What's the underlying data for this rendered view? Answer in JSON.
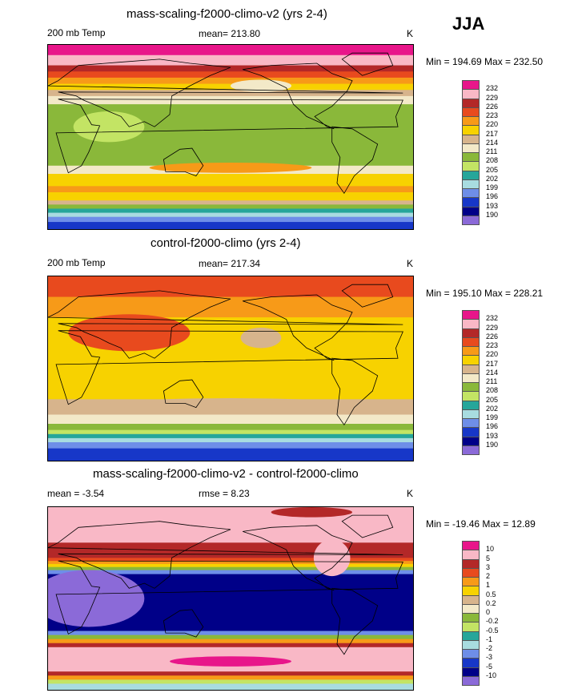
{
  "season_label": "JJA",
  "chart_data": [
    {
      "type": "heatmap",
      "title": "mass-scaling-f2000-climo-v2 (yrs 2-4)",
      "left_label": "200 mb Temp",
      "stat_label": "mean= 213.80",
      "units": "K",
      "minmax": "Min = 194.69 Max = 232.50",
      "levels": [
        "232",
        "229",
        "226",
        "223",
        "220",
        "217",
        "214",
        "211",
        "208",
        "205",
        "202",
        "199",
        "196",
        "193",
        "190"
      ],
      "colors": [
        "#e8168a",
        "#f9b8c6",
        "#b32828",
        "#e84a1e",
        "#f79a18",
        "#f7d200",
        "#d7b48c",
        "#f3e9c8",
        "#8ab83a",
        "#c3e464",
        "#26a69a",
        "#a8dce0",
        "#6e8ee8",
        "#1737c8",
        "#000088",
        "#8b6ad8"
      ],
      "bands": [
        {
          "lat": 90,
          "level": 0
        },
        {
          "lat": 80,
          "level": 1
        },
        {
          "lat": 70,
          "level": 2
        },
        {
          "lat": 64,
          "level": 3
        },
        {
          "lat": 58,
          "level": 4
        },
        {
          "lat": 52,
          "level": 5
        },
        {
          "lat": 46,
          "level": 6
        },
        {
          "lat": 40,
          "level": 7
        },
        {
          "lat": 32,
          "level": 8
        },
        {
          "lat": -28,
          "level": 7
        },
        {
          "lat": -36,
          "level": 5
        },
        {
          "lat": -48,
          "level": 4
        },
        {
          "lat": -54,
          "level": 5
        },
        {
          "lat": -62,
          "level": 6
        },
        {
          "lat": -66,
          "level": 8
        },
        {
          "lat": -70,
          "level": 10
        },
        {
          "lat": -74,
          "level": 11
        },
        {
          "lat": -78,
          "level": 12
        },
        {
          "lat": -83,
          "level": 13
        }
      ],
      "blobs": [
        {
          "lon": 180,
          "lat": -30,
          "rx": 80,
          "ry": 5,
          "level": 4
        },
        {
          "lon": 60,
          "lat": 10,
          "rx": 35,
          "ry": 15,
          "level": 9
        },
        {
          "lon": -150,
          "lat": 50,
          "rx": 30,
          "ry": 6,
          "level": 7
        }
      ]
    },
    {
      "type": "heatmap",
      "title": "control-f2000-climo (yrs 2-4)",
      "left_label": "200 mb Temp",
      "stat_label": "mean= 217.34",
      "units": "K",
      "minmax": "Min = 195.10 Max = 228.21",
      "levels": [
        "232",
        "229",
        "226",
        "223",
        "220",
        "217",
        "214",
        "211",
        "208",
        "205",
        "202",
        "199",
        "196",
        "193",
        "190"
      ],
      "colors": [
        "#e8168a",
        "#f9b8c6",
        "#b32828",
        "#e84a1e",
        "#f79a18",
        "#f7d200",
        "#d7b48c",
        "#f3e9c8",
        "#8ab83a",
        "#c3e464",
        "#26a69a",
        "#a8dce0",
        "#6e8ee8",
        "#1737c8",
        "#000088",
        "#8b6ad8"
      ],
      "bands": [
        {
          "lat": 90,
          "level": 3
        },
        {
          "lat": 70,
          "level": 4
        },
        {
          "lat": 50,
          "level": 5
        },
        {
          "lat": -30,
          "level": 6
        },
        {
          "lat": -45,
          "level": 7
        },
        {
          "lat": -54,
          "level": 8
        },
        {
          "lat": -60,
          "level": 9
        },
        {
          "lat": -64,
          "level": 10
        },
        {
          "lat": -68,
          "level": 11
        },
        {
          "lat": -72,
          "level": 12
        },
        {
          "lat": -78,
          "level": 13
        }
      ],
      "blobs": [
        {
          "lon": 80,
          "lat": 35,
          "rx": 40,
          "ry": 10,
          "level": 2
        },
        {
          "lon": 80,
          "lat": 35,
          "rx": 60,
          "ry": 18,
          "level": 3
        },
        {
          "lon": -150,
          "lat": 30,
          "rx": 20,
          "ry": 10,
          "level": 6
        },
        {
          "lon": 180,
          "lat": -35,
          "rx": 120,
          "ry": 6,
          "level": 6
        }
      ]
    },
    {
      "type": "heatmap",
      "title": "mass-scaling-f2000-climo-v2 - control-f2000-climo",
      "left_label": "mean =  -3.54",
      "stat_label": "rmse =   8.23",
      "units": "K",
      "minmax": "Min = -19.46 Max =  12.89",
      "levels": [
        "10",
        "5",
        "3",
        "2",
        "1",
        "0.5",
        "0.2",
        "0",
        "-0.2",
        "-0.5",
        "-1",
        "-2",
        "-3",
        "-5",
        "-10"
      ],
      "colors": [
        "#e8168a",
        "#f9b8c6",
        "#b32828",
        "#e84a1e",
        "#f79a18",
        "#f7d200",
        "#d7b48c",
        "#f3e9c8",
        "#8ab83a",
        "#c3e464",
        "#26a69a",
        "#a8dce0",
        "#6e8ee8",
        "#1737c8",
        "#000088",
        "#8b6ad8"
      ],
      "bands": [
        {
          "lat": 90,
          "level": 1
        },
        {
          "lat": 55,
          "level": 2
        },
        {
          "lat": 40,
          "level": 3
        },
        {
          "lat": 37,
          "level": 4
        },
        {
          "lat": 34,
          "level": 5
        },
        {
          "lat": 31,
          "level": 8
        },
        {
          "lat": 28,
          "level": 12
        },
        {
          "lat": 24,
          "level": 14
        },
        {
          "lat": -32,
          "level": 12
        },
        {
          "lat": -36,
          "level": 8
        },
        {
          "lat": -40,
          "level": 4
        },
        {
          "lat": -44,
          "level": 2
        },
        {
          "lat": -48,
          "level": 1
        },
        {
          "lat": -72,
          "level": 2
        },
        {
          "lat": -76,
          "level": 4
        },
        {
          "lat": -80,
          "level": 9
        },
        {
          "lat": -84,
          "level": 11
        }
      ],
      "blobs": [
        {
          "lon": 40,
          "lat": 0,
          "rx": 55,
          "ry": 28,
          "level": 15
        },
        {
          "lon": 180,
          "lat": -62,
          "rx": 60,
          "ry": 5,
          "level": 0
        },
        {
          "lon": -100,
          "lat": 85,
          "rx": 40,
          "ry": 5,
          "level": 2
        },
        {
          "lon": -80,
          "lat": 40,
          "rx": 18,
          "ry": 18,
          "level": 1
        }
      ]
    }
  ]
}
